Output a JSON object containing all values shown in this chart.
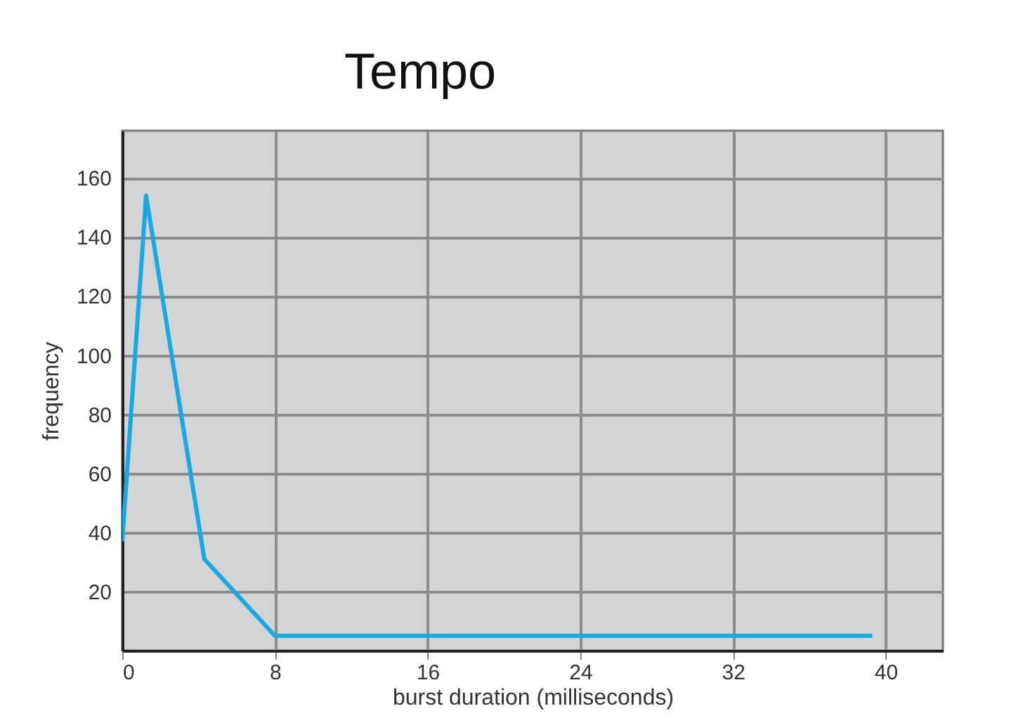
{
  "chart_data": {
    "type": "line",
    "title": "Tempo",
    "xlabel": "burst duration (milliseconds)",
    "ylabel": "frequency",
    "x": [
      0,
      1.25,
      4.3,
      8,
      39.3
    ],
    "series": [
      {
        "color": "#1aa8e0",
        "values": [
          37,
          154,
          31,
          5,
          5
        ]
      }
    ],
    "xlim": [
      0,
      43
    ],
    "xticks": [
      0,
      8,
      16,
      24,
      32,
      40
    ],
    "ylim": [
      0,
      176
    ],
    "yticks": [
      20,
      40,
      60,
      80,
      100,
      120,
      140,
      160
    ],
    "grid": true,
    "marker": "none",
    "line_style": "solid"
  }
}
